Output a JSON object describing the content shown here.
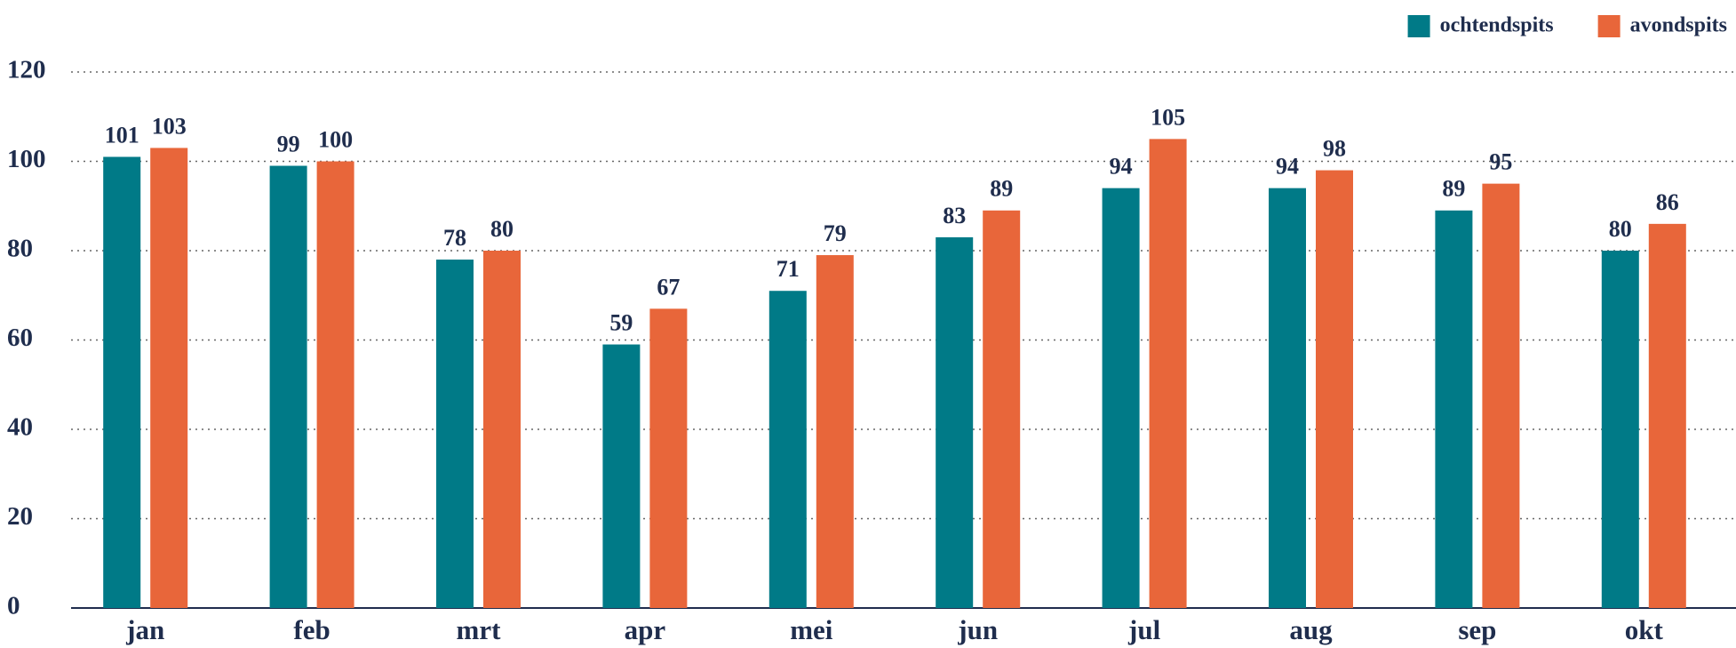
{
  "chart_data": {
    "type": "bar",
    "categories": [
      "jan",
      "feb",
      "mrt",
      "apr",
      "mei",
      "jun",
      "jul",
      "aug",
      "sep",
      "okt"
    ],
    "series": [
      {
        "name": "ochtendspits",
        "color": "#007a87",
        "values": [
          101,
          99,
          78,
          59,
          71,
          83,
          94,
          94,
          89,
          80
        ]
      },
      {
        "name": "avondspits",
        "color": "#e8663a",
        "values": [
          103,
          100,
          80,
          67,
          79,
          89,
          105,
          98,
          95,
          86
        ]
      }
    ],
    "ylim": [
      0,
      120
    ],
    "yticks": [
      0,
      20,
      40,
      60,
      80,
      100,
      120
    ],
    "grid": true,
    "legend": "upper right"
  }
}
